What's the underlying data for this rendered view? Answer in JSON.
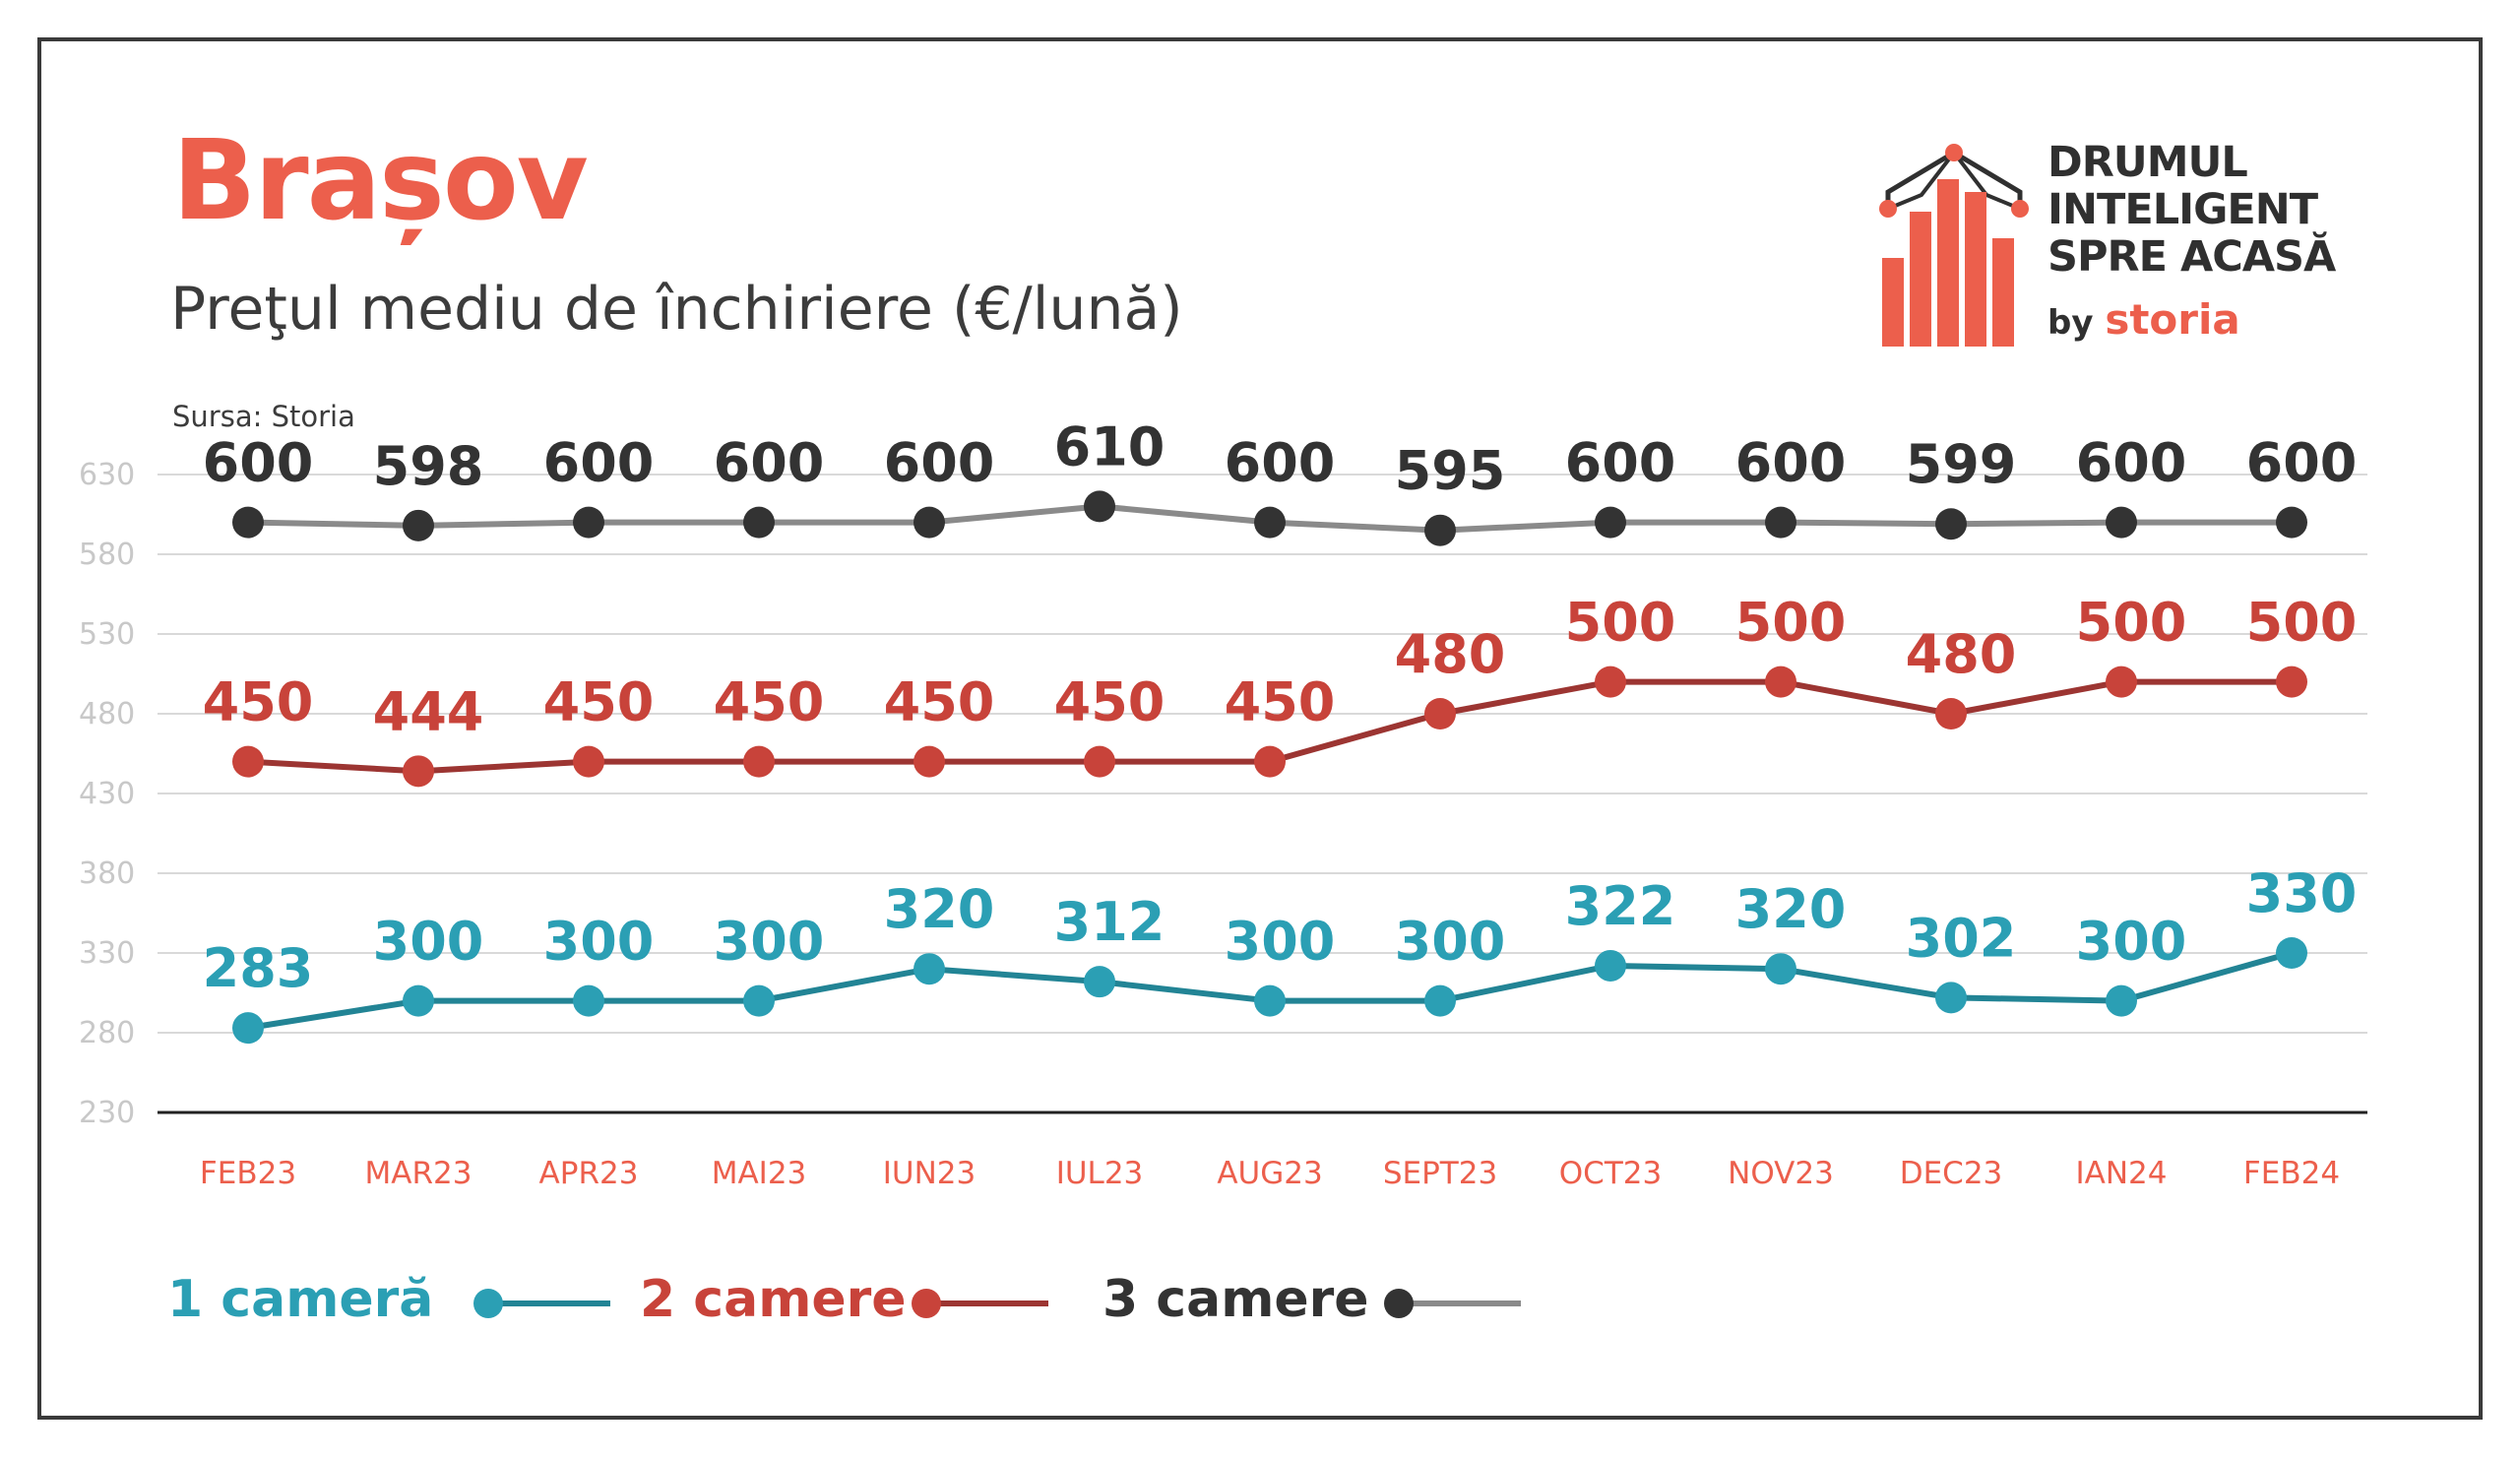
{
  "header": {
    "title": "Brașov",
    "subtitle": "Preţul mediu de închiriere (€/lună)",
    "source": "Sursa: Storia"
  },
  "logo": {
    "line1": "DRUMUL",
    "line2": "INTELIGENT",
    "line3": "SPRE ACASĂ",
    "by": "by",
    "brand": "storia"
  },
  "colors": {
    "title": "#ec5f4c",
    "series_1": "#2b9fb4",
    "series_1_line": "#228495",
    "series_2": "#c8433a",
    "series_2_line": "#9c3532",
    "series_3": "#333333",
    "series_3_line": "#8a8a8a",
    "xtick": "#ec5f4c",
    "ytick": "#c8c8c8",
    "grid": "#d9d9d9"
  },
  "chart_data": {
    "type": "line",
    "categories": [
      "FEB23",
      "MAR23",
      "APR23",
      "MAI23",
      "IUN23",
      "IUL23",
      "AUG23",
      "SEPT23",
      "OCT23",
      "NOV23",
      "DEC23",
      "IAN24",
      "FEB24"
    ],
    "yticks": [
      230,
      280,
      330,
      380,
      430,
      480,
      530,
      580,
      630
    ],
    "ylim": [
      230,
      630
    ],
    "grid": true,
    "legend": "bottom-left",
    "series": [
      {
        "name": "1 cameră",
        "color_key": "series_1",
        "values": [
          283,
          300,
          300,
          300,
          320,
          312,
          300,
          300,
          322,
          320,
          302,
          300,
          330
        ]
      },
      {
        "name": "2 camere",
        "color_key": "series_2",
        "values": [
          450,
          444,
          450,
          450,
          450,
          450,
          450,
          480,
          500,
          500,
          480,
          500,
          500
        ]
      },
      {
        "name": "3 camere",
        "color_key": "series_3",
        "values": [
          600,
          598,
          600,
          600,
          600,
          610,
          600,
          595,
          600,
          600,
          599,
          600,
          600
        ]
      }
    ]
  }
}
